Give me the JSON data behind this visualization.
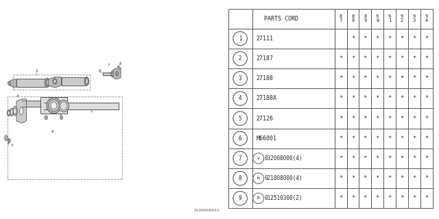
{
  "bg_color": "#ffffff",
  "diagram_id": "A199000043",
  "table": {
    "header_col": "PARTS CORD",
    "year_cols": [
      "8\n7",
      "8\n8",
      "8\n9",
      "9\n0",
      "9\n1",
      "9\n2",
      "9\n3",
      "9\n4"
    ],
    "rows": [
      {
        "num": 1,
        "part": "27111",
        "prefix": "",
        "no_star_col": 0
      },
      {
        "num": 2,
        "part": "27187",
        "prefix": "",
        "no_star_col": -1
      },
      {
        "num": 3,
        "part": "27188",
        "prefix": "",
        "no_star_col": -1
      },
      {
        "num": 4,
        "part": "27188A",
        "prefix": "",
        "no_star_col": -1
      },
      {
        "num": 5,
        "part": "27126",
        "prefix": "",
        "no_star_col": -1
      },
      {
        "num": 6,
        "part": "M66001",
        "prefix": "",
        "no_star_col": -1
      },
      {
        "num": 7,
        "part": "032008000(4)",
        "prefix": "V",
        "no_star_col": -1
      },
      {
        "num": 8,
        "part": "021808000(4)",
        "prefix": "N",
        "no_star_col": -1
      },
      {
        "num": 9,
        "part": "012510300(2)",
        "prefix": "B",
        "no_star_col": -1
      }
    ]
  }
}
